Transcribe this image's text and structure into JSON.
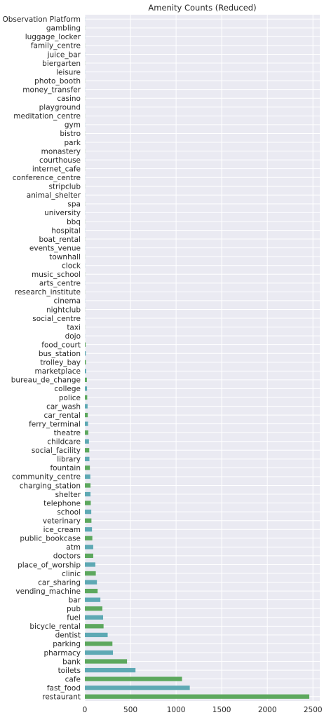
{
  "chart_data": {
    "type": "bar",
    "orientation": "horizontal",
    "title": "Amenity Counts (Reduced)",
    "xlabel": "",
    "ylabel": "",
    "xlim": [
      0,
      2575
    ],
    "xticks": [
      0,
      500,
      1000,
      1500,
      2000,
      2500
    ],
    "grid": true,
    "legend": "none",
    "colors": [
      "#5da85e",
      "#5ea9b4"
    ],
    "background": "#eaeaf2",
    "categories": [
      "restaurant",
      "fast_food",
      "cafe",
      "toilets",
      "bank",
      "pharmacy",
      "parking",
      "dentist",
      "bicycle_rental",
      "fuel",
      "pub",
      "bar",
      "vending_machine",
      "car_sharing",
      "clinic",
      "place_of_worship",
      "doctors",
      "atm",
      "public_bookcase",
      "ice_cream",
      "veterinary",
      "school",
      "telephone",
      "shelter",
      "charging_station",
      "community_centre",
      "fountain",
      "library",
      "social_facility",
      "childcare",
      "theatre",
      "ferry_terminal",
      "car_rental",
      "car_wash",
      "police",
      "college",
      "bureau_de_change",
      "marketplace",
      "trolley_bay",
      "bus_station",
      "food_court",
      "dojo",
      "taxi",
      "social_centre",
      "nightclub",
      "cinema",
      "research_institute",
      "arts_centre",
      "music_school",
      "clock",
      "townhall",
      "events_venue",
      "boat_rental",
      "hospital",
      "bbq",
      "university",
      "spa",
      "animal_shelter",
      "stripclub",
      "conference_centre",
      "internet_cafe",
      "courthouse",
      "monastery",
      "park",
      "bistro",
      "gym",
      "meditation_centre",
      "playground",
      "casino",
      "money_transfer",
      "photo_booth",
      "leisure",
      "biergarten",
      "juice_bar",
      "family_centre",
      "luggage_locker",
      "gambling",
      "Observation Platform"
    ],
    "values": [
      2460,
      1150,
      1065,
      555,
      462,
      308,
      302,
      250,
      205,
      200,
      192,
      170,
      140,
      132,
      120,
      115,
      92,
      92,
      82,
      78,
      72,
      70,
      65,
      62,
      62,
      60,
      55,
      50,
      48,
      45,
      38,
      35,
      32,
      30,
      26,
      24,
      22,
      15,
      12,
      10,
      8,
      1,
      1,
      1,
      1,
      1,
      1,
      1,
      1,
      1,
      1,
      1,
      1,
      1,
      1,
      1,
      1,
      1,
      1,
      1,
      1,
      1,
      1,
      1,
      1,
      1,
      1,
      1,
      1,
      1,
      1,
      1,
      1,
      1,
      1,
      1,
      1,
      1
    ]
  }
}
